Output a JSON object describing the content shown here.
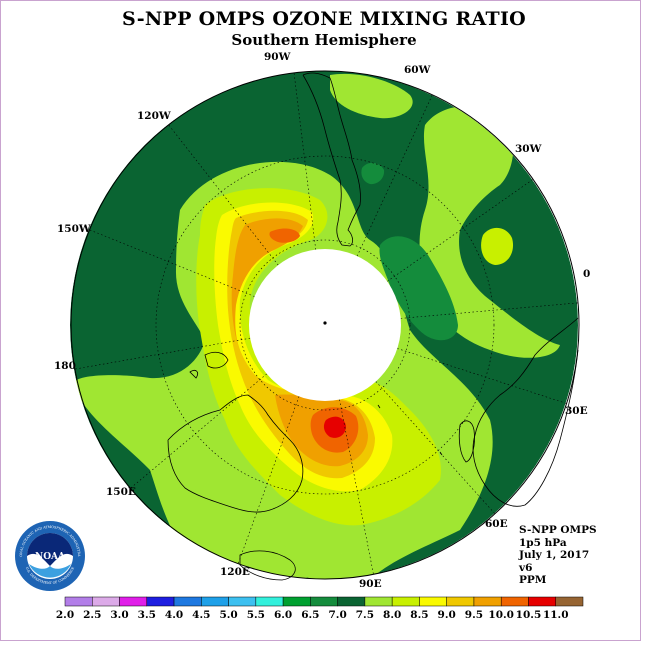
{
  "title": "S-NPP OMPS OZONE MIXING RATIO",
  "subtitle": "Southern Hemisphere",
  "longitude_labels": {
    "lon_0": "0",
    "lon_30e": "30E",
    "lon_60e": "60E",
    "lon_90e": "90E",
    "lon_120e": "120E",
    "lon_150e": "150E",
    "lon_180": "180",
    "lon_150w": "150W",
    "lon_120w": "120W",
    "lon_90w": "90W",
    "lon_60w": "60W",
    "lon_30w": "30W"
  },
  "info": {
    "instrument": "S-NPP OMPS",
    "level": "1p5 hPa",
    "date": "July 1, 2017",
    "version": "v6",
    "units": "PPM"
  },
  "colorbar": {
    "labels": [
      "2.0",
      "2.5",
      "3.0",
      "3.5",
      "4.0",
      "4.5",
      "5.0",
      "5.5",
      "6.0",
      "6.5",
      "7.0",
      "7.5",
      "8.0",
      "8.5",
      "9.0",
      "9.5",
      "10.0",
      "10.5",
      "11.0"
    ],
    "colors": [
      "#b27ee8",
      "#dcaae8",
      "#e01ee8",
      "#1e1ee0",
      "#1e78e0",
      "#1ea0e8",
      "#3cc0f0",
      "#32f0dc",
      "#00a030",
      "#148c3c",
      "#0a6432",
      "#a0e632",
      "#c8f000",
      "#fafa00",
      "#f0c800",
      "#f0a000",
      "#f06400",
      "#e60000",
      "#966432"
    ]
  },
  "logo": {
    "text": "NOAA",
    "ring_text": "NATIONAL OCEANIC AND ATMOSPHERIC ADMINISTRATION",
    "ring_text_bottom": "U.S. DEPARTMENT OF COMMERCE"
  },
  "colors": {
    "background": "#ffffff",
    "missing": "#ffffff",
    "coast": "#000000",
    "grid": "#000000"
  }
}
